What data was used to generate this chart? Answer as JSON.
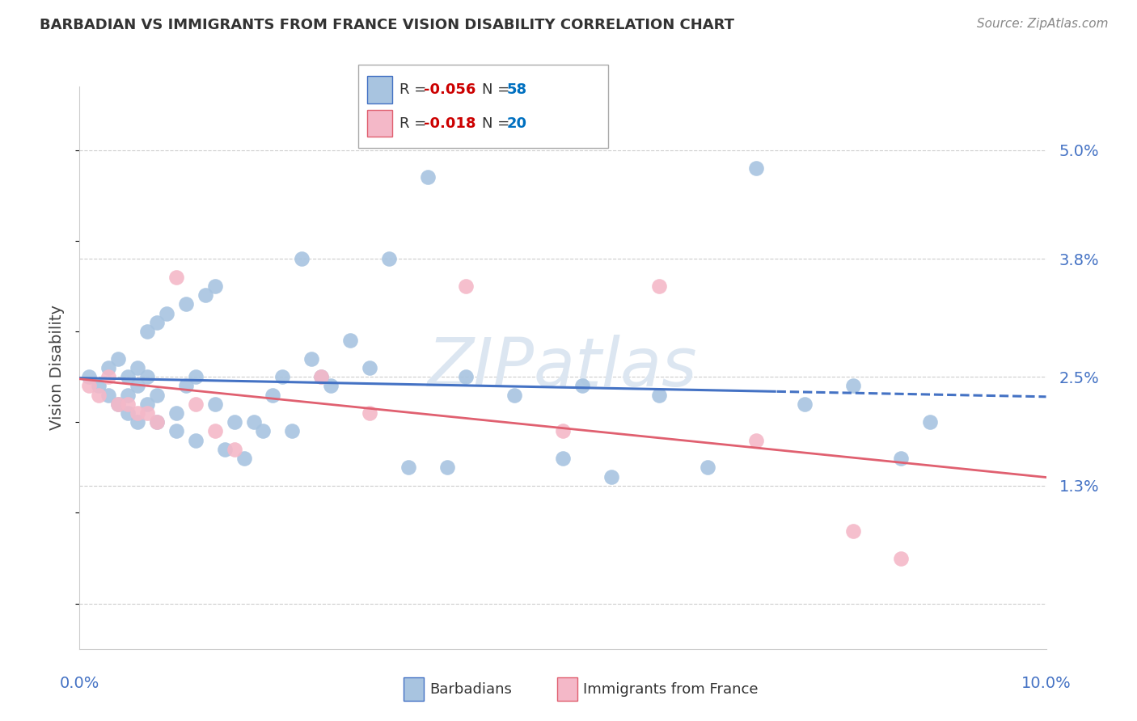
{
  "title": "BARBADIAN VS IMMIGRANTS FROM FRANCE VISION DISABILITY CORRELATION CHART",
  "source": "Source: ZipAtlas.com",
  "ylabel": "Vision Disability",
  "xlim": [
    0.0,
    0.1
  ],
  "ylim": [
    -0.005,
    0.057
  ],
  "watermark": "ZIPatlas",
  "barbadian_x": [
    0.001,
    0.002,
    0.003,
    0.003,
    0.004,
    0.004,
    0.005,
    0.005,
    0.005,
    0.006,
    0.006,
    0.006,
    0.007,
    0.007,
    0.007,
    0.008,
    0.008,
    0.008,
    0.009,
    0.01,
    0.01,
    0.011,
    0.011,
    0.012,
    0.012,
    0.013,
    0.014,
    0.014,
    0.015,
    0.016,
    0.017,
    0.018,
    0.019,
    0.02,
    0.021,
    0.022,
    0.023,
    0.024,
    0.025,
    0.026,
    0.028,
    0.03,
    0.032,
    0.034,
    0.036,
    0.038,
    0.04,
    0.045,
    0.05,
    0.052,
    0.055,
    0.06,
    0.065,
    0.07,
    0.075,
    0.08,
    0.085,
    0.088
  ],
  "barbadian_y": [
    0.025,
    0.024,
    0.023,
    0.026,
    0.022,
    0.027,
    0.021,
    0.023,
    0.025,
    0.02,
    0.024,
    0.026,
    0.022,
    0.025,
    0.03,
    0.02,
    0.023,
    0.031,
    0.032,
    0.019,
    0.021,
    0.024,
    0.033,
    0.018,
    0.025,
    0.034,
    0.022,
    0.035,
    0.017,
    0.02,
    0.016,
    0.02,
    0.019,
    0.023,
    0.025,
    0.019,
    0.038,
    0.027,
    0.025,
    0.024,
    0.029,
    0.026,
    0.038,
    0.015,
    0.047,
    0.015,
    0.025,
    0.023,
    0.016,
    0.024,
    0.014,
    0.023,
    0.015,
    0.048,
    0.022,
    0.024,
    0.016,
    0.02
  ],
  "france_x": [
    0.001,
    0.002,
    0.003,
    0.004,
    0.005,
    0.006,
    0.007,
    0.008,
    0.01,
    0.012,
    0.014,
    0.016,
    0.025,
    0.03,
    0.04,
    0.05,
    0.06,
    0.07,
    0.08,
    0.085
  ],
  "france_y": [
    0.024,
    0.023,
    0.025,
    0.022,
    0.022,
    0.021,
    0.021,
    0.02,
    0.036,
    0.022,
    0.019,
    0.017,
    0.025,
    0.021,
    0.035,
    0.019,
    0.035,
    0.018,
    0.008,
    0.005
  ],
  "blue_scatter_color": "#a8c4e0",
  "pink_scatter_color": "#f4b8c8",
  "blue_line_color": "#4472c4",
  "pink_line_color": "#e06070",
  "R_blue": "-0.056",
  "N_blue": "58",
  "R_pink": "-0.018",
  "N_pink": "20",
  "legend_R_color": "#cc0000",
  "legend_N_color": "#0070c0",
  "ytick_vals": [
    0.0,
    0.013,
    0.025,
    0.038,
    0.05
  ],
  "ytick_labels": [
    "",
    "1.3%",
    "2.5%",
    "3.8%",
    "5.0%"
  ],
  "xtick_vals": [
    0.0,
    0.1
  ],
  "xtick_labels": [
    "0.0%",
    "10.0%"
  ],
  "grid_color": "#cccccc",
  "background_color": "#ffffff",
  "title_color": "#333333",
  "right_axis_color": "#4472c4",
  "bottom_axis_color": "#4472c4",
  "watermark_color": "#dce6f1"
}
